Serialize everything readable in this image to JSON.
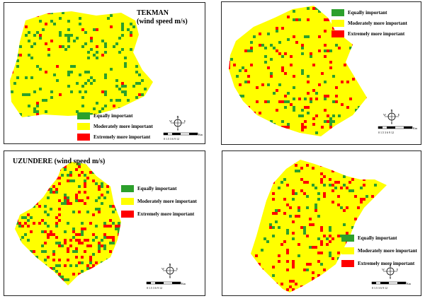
{
  "colors": {
    "equally": "#2ca02c",
    "moderately": "#ffff00",
    "extremely": "#ff0000",
    "outline": "#000000"
  },
  "legend_labels": {
    "equally": "Equally important",
    "moderately": "Moderately more important",
    "extremely": "Extremely more important"
  },
  "panels": [
    {
      "title_line1": "TEKMAN",
      "title_line2": "(wind speed m/s)",
      "scale_ticks": "0 1.5 3  6   9   12",
      "scale_unit": "Km"
    },
    {
      "title_line1": "",
      "title_line2": "",
      "scale_ticks": "0 1.5 3  6   9   12",
      "scale_unit": "Km"
    },
    {
      "title_line1": "UZUNDERE (wind speed m/s)",
      "title_line2": "",
      "scale_ticks": "0 1.5 3  6   9   12",
      "scale_unit": "Km"
    },
    {
      "title_line1": "",
      "title_line2": "",
      "scale_ticks": "0 1.5 3  6   9   12",
      "scale_unit": "Km"
    }
  ],
  "north_arrow": {
    "n": "N",
    "e": "E",
    "s": "S",
    "w": "W"
  }
}
